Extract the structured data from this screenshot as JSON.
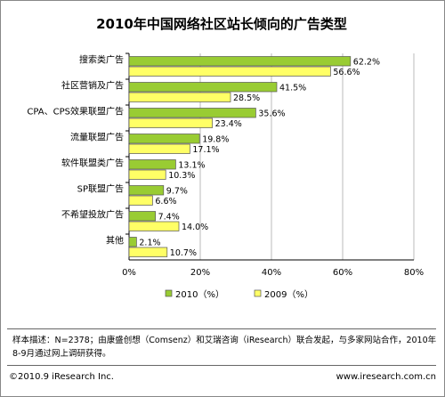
{
  "chart_data": {
    "type": "bar",
    "orientation": "horizontal",
    "title": "2010年中国网络社区站长倾向的广告类型",
    "categories": [
      "搜索类广告",
      "社区营销及广告",
      "CPA、CPS效果联盟广告",
      "流量联盟广告",
      "软件联盟类广告",
      "SP联盟广告",
      "不希望投放广告",
      "其他"
    ],
    "series": [
      {
        "name": "2010（%）",
        "color": "#99cc33",
        "values": [
          62.2,
          41.5,
          35.6,
          19.8,
          13.1,
          9.7,
          7.4,
          2.1
        ]
      },
      {
        "name": "2009（%）",
        "color": "#ffff66",
        "values": [
          56.6,
          28.5,
          23.4,
          17.1,
          10.3,
          6.6,
          14.0,
          10.7
        ]
      }
    ],
    "value_labels": [
      [
        "62.2%",
        "41.5%",
        "35.6%",
        "19.8%",
        "13.1%",
        "9.7%",
        "7.4%",
        "2.1%"
      ],
      [
        "56.6%",
        "28.5%",
        "23.4%",
        "17.1%",
        "10.3%",
        "6.6%",
        "14.0%",
        "10.7%"
      ]
    ],
    "xlim": [
      0,
      80
    ],
    "xticks": [
      0,
      20,
      40,
      60,
      80
    ],
    "xtick_labels": [
      "0%",
      "20%",
      "40%",
      "60%",
      "80%"
    ],
    "grid": true,
    "legend_position": "bottom"
  },
  "note": "样本描述：N=2378；由康盛创想（Comsenz）和艾瑞咨询（iResearch）联合发起，与多家网站合作，2010年8-9月通过网上调研获得。",
  "footer": {
    "copyright": "©2010.9 iResearch Inc.",
    "website": "www.iresearch.com.cn"
  }
}
